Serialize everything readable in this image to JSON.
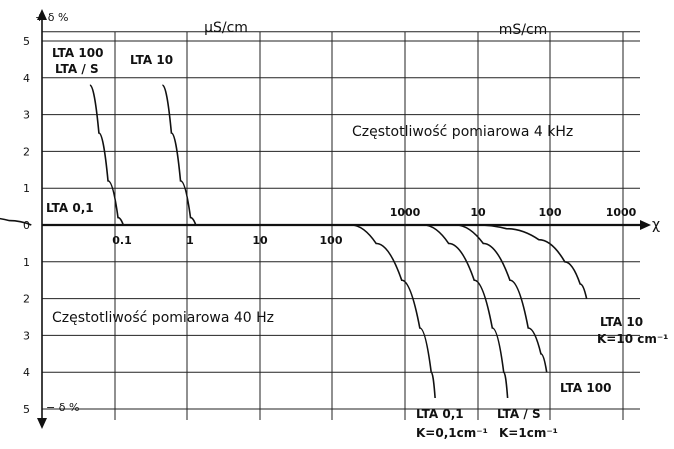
{
  "chart_data": {
    "type": "line",
    "axes": {
      "y_top_label": "+ δ %",
      "y_bottom_label": "− δ %",
      "x_axis_symbol": "χ",
      "y_ticks_top": [
        "5",
        "4",
        "3",
        "2",
        "1",
        "0"
      ],
      "y_ticks_bottom": [
        "1",
        "2",
        "3",
        "4",
        "5"
      ],
      "x_ticks_lower": [
        "0.1",
        "1",
        "10",
        "100"
      ],
      "x_ticks_upper": [
        "1000",
        "10",
        "100",
        "1000"
      ],
      "units_left": "µS/cm",
      "units_right": "mS/cm",
      "grid": true
    },
    "annotations": {
      "freq_4khz": "Częstotliwość pomiarowa 4 kHz",
      "freq_40hz": "Częstotliwość pomiarowa 40 Hz"
    },
    "series": [
      {
        "name": "LTA 0,1",
        "x": [
          0.0017,
          0.0035,
          0.007
        ],
        "y": [
          0.2,
          0.12,
          0
        ]
      },
      {
        "name": "LTA 100 LTA/S",
        "x": [
          0.045,
          0.06,
          0.08,
          0.11,
          0.13
        ],
        "y": [
          3.8,
          2.5,
          1.2,
          0.2,
          0
        ]
      },
      {
        "name": "LTA 10",
        "x": [
          0.45,
          0.6,
          0.8,
          1.1,
          1.3
        ],
        "y": [
          3.8,
          2.5,
          1.2,
          0.2,
          0
        ]
      },
      {
        "name": "LTA 0,1 K=0,1 cm⁻¹",
        "x": [
          180,
          400,
          900,
          1600,
          2300,
          2600
        ],
        "y": [
          0,
          -0.5,
          -1.5,
          -2.8,
          -4,
          -4.7
        ]
      },
      {
        "name": "LTA/S K=1 cm⁻¹",
        "x": [
          1800,
          4000,
          9000,
          16000,
          23000,
          26000
        ],
        "y": [
          0,
          -0.5,
          -1.5,
          -2.8,
          -4,
          -4.7
        ]
      },
      {
        "name": "LTA 100",
        "x": [
          5000,
          12000,
          28000,
          50000,
          75000,
          90000
        ],
        "y": [
          0,
          -0.5,
          -1.5,
          -2.8,
          -3.5,
          -4
        ]
      },
      {
        "name": "LTA 10 K=10 cm⁻¹",
        "x": [
          10000,
          25000,
          70000,
          160000,
          260000,
          320000
        ],
        "y": [
          0,
          -0.1,
          -0.4,
          -1,
          -1.6,
          -2
        ]
      }
    ],
    "labels": {
      "lta01_top": "LTA 0,1",
      "lta100_top_line1": "LTA 100",
      "lta100_top_line2": "LTA / S",
      "lta10_top": "LTA 10",
      "lta01_bottom_line1": "LTA 0,1",
      "lta01_bottom_line2": "K=0,1cm⁻¹",
      "ltas_bottom_line1": "LTA / S",
      "ltas_bottom_line2": "K=1cm⁻¹",
      "lta100_bottom": "LTA 100",
      "lta10_bottom_line1": "LTA 10",
      "lta10_bottom_line2": "K=10 cm⁻¹"
    }
  }
}
